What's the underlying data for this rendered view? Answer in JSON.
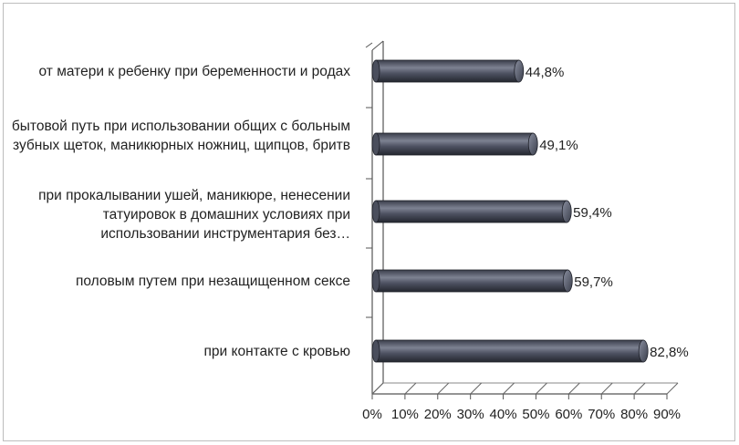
{
  "chart_data": {
    "type": "bar",
    "orientation": "horizontal",
    "style": "3d-cylinder",
    "title": "",
    "xlabel": "",
    "ylabel": "",
    "xlim": [
      0,
      90
    ],
    "tick_labels": [
      "0%",
      "10%",
      "20%",
      "30%",
      "40%",
      "50%",
      "60%",
      "70%",
      "80%",
      "90%"
    ],
    "categories": [
      "от матери к ребенку при беременности и родах",
      "бытовой путь при использовании общих с больным зубных щеток, маникюрных ножниц, щипцов, бритв",
      "при прокалывании ушей, маникюре, ненесении татуировок в домашних условиях при использовании инструментария без…",
      "половым путем при незащищенном сексе",
      "при контакте с кровью"
    ],
    "values": [
      44.8,
      49.1,
      59.4,
      59.7,
      82.8
    ],
    "value_labels": [
      "44,8%",
      "49,1%",
      "59,4%",
      "59,7%",
      "82,8%"
    ],
    "grid": true,
    "bar_color": "#5a5f6e"
  }
}
